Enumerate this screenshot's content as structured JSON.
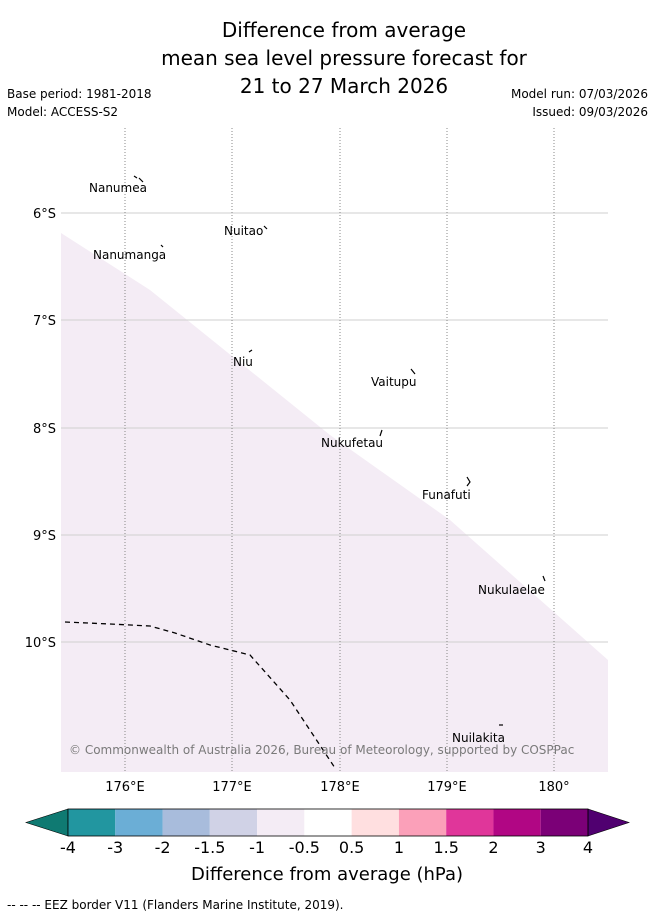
{
  "title": {
    "line1": "Difference from average",
    "line2": "mean sea level pressure forecast for",
    "line3": "21 to 27 March 2026"
  },
  "meta": {
    "base_period": "Base period: 1981-2018",
    "model": "Model: ACCESS-S2",
    "model_run": "Model run: 07/03/2026",
    "issued": "Issued: 09/03/2026"
  },
  "map": {
    "x_ticks": [
      "176°E",
      "177°E",
      "178°E",
      "179°E",
      "180°"
    ],
    "y_ticks": [
      "6°S",
      "7°S",
      "8°S",
      "9°S",
      "10°S"
    ],
    "places": [
      "Nanumea",
      "Nuitao",
      "Nanumanga",
      "Niu",
      "Vaitupu",
      "Nukufetau",
      "Funafuti",
      "Nukulaelae",
      "Nuilakita"
    ],
    "copyright": "© Commonwealth of Australia 2026, Bureau of Meteorology, supported by COSPPac",
    "shade_color": "#f4ecf5"
  },
  "colorbar": {
    "ticks": [
      "-4",
      "-3",
      "-2",
      "-1.5",
      "-1",
      "-0.5",
      "0.5",
      "1",
      "1.5",
      "2",
      "3",
      "4"
    ],
    "colors": [
      "#0f7a72",
      "#2296a0",
      "#6baed6",
      "#a8bcdc",
      "#d0d2e6",
      "#f4ecf5",
      "#ffffff",
      "#ffdfe0",
      "#fba0b9",
      "#e0369a",
      "#b10684",
      "#7b0077",
      "#500070"
    ],
    "label": "Difference from average (hPa)"
  },
  "footer": {
    "legend": "--  --  -- EEZ border V11 (Flanders Marine Institute, 2019)."
  }
}
